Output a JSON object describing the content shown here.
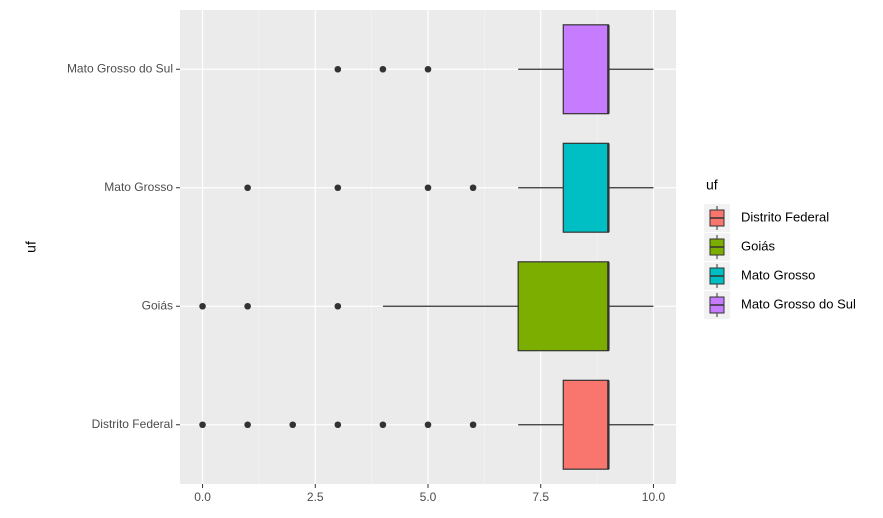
{
  "chart_data": {
    "type": "boxplot",
    "orientation": "horizontal",
    "y_label": "uf",
    "legend_title": "uf",
    "legend_position": "right",
    "categories": [
      "Distrito Federal",
      "Goiás",
      "Mato Grosso",
      "Mato Grosso do Sul"
    ],
    "colors": [
      "#F8766D",
      "#7CAE00",
      "#00BFC4",
      "#C77CFF"
    ],
    "boxes": [
      {
        "min": 7,
        "q1": 8,
        "median": 9,
        "q3": 9,
        "max": 10,
        "outliers": [
          0,
          1,
          2,
          3,
          4,
          5,
          6
        ]
      },
      {
        "min": 4,
        "q1": 7,
        "median": 9,
        "q3": 9,
        "max": 10,
        "outliers": [
          0,
          1,
          3
        ]
      },
      {
        "min": 7,
        "q1": 8,
        "median": 9,
        "q3": 9,
        "max": 10,
        "outliers": [
          1,
          3,
          5,
          6
        ]
      },
      {
        "min": 7,
        "q1": 8,
        "median": 9,
        "q3": 9,
        "max": 10,
        "outliers": [
          3,
          4,
          5
        ]
      }
    ],
    "xlim": [
      -0.5,
      10.5
    ],
    "xticks": [
      {
        "value": 0,
        "label": "0.0"
      },
      2.5,
      {
        "value": 5,
        "label": "5.0"
      },
      7.5,
      {
        "value": 10,
        "label": "10.0"
      }
    ],
    "grid": true
  }
}
